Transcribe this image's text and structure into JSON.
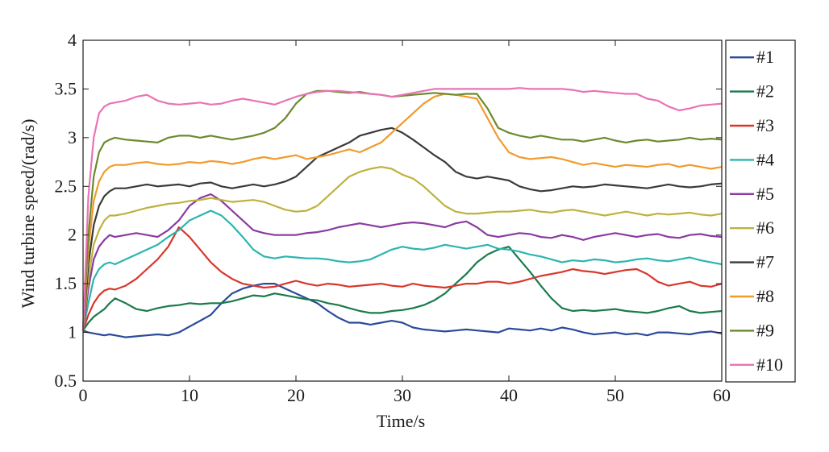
{
  "chart_data": {
    "type": "line",
    "title": "",
    "xlabel": "Time/s",
    "ylabel": "Wind turbine speed/(rad/s)",
    "xlim": [
      0,
      60
    ],
    "ylim": [
      0.5,
      4
    ],
    "xticks": [
      "0",
      "10",
      "20",
      "30",
      "40",
      "50",
      "60"
    ],
    "yticks": [
      "0.5",
      "1",
      "1.5",
      "2",
      "2.5",
      "3",
      "3.5",
      "4"
    ],
    "grid": false,
    "legend_position": "outside-right",
    "x": [
      0,
      0.5,
      1,
      1.5,
      2,
      2.5,
      3,
      4,
      5,
      6,
      7,
      8,
      9,
      10,
      11,
      12,
      13,
      14,
      15,
      16,
      17,
      18,
      19,
      20,
      21,
      22,
      23,
      24,
      25,
      26,
      27,
      28,
      29,
      30,
      31,
      32,
      33,
      34,
      35,
      36,
      37,
      38,
      39,
      40,
      41,
      42,
      43,
      44,
      45,
      46,
      47,
      48,
      49,
      50,
      51,
      52,
      53,
      54,
      55,
      56,
      57,
      58,
      59,
      60
    ],
    "series": [
      {
        "name": "#1",
        "color": "#2a4a9a",
        "values": [
          1.02,
          1.0,
          0.99,
          0.98,
          0.97,
          0.98,
          0.97,
          0.95,
          0.96,
          0.97,
          0.98,
          0.97,
          1.0,
          1.06,
          1.12,
          1.18,
          1.3,
          1.4,
          1.45,
          1.48,
          1.5,
          1.5,
          1.45,
          1.4,
          1.35,
          1.3,
          1.22,
          1.15,
          1.1,
          1.1,
          1.08,
          1.1,
          1.12,
          1.1,
          1.05,
          1.03,
          1.02,
          1.01,
          1.02,
          1.03,
          1.02,
          1.01,
          1.0,
          1.04,
          1.03,
          1.02,
          1.04,
          1.02,
          1.05,
          1.03,
          1.0,
          0.98,
          0.99,
          1.0,
          0.98,
          0.99,
          0.97,
          1.0,
          1.0,
          0.99,
          0.98,
          1.0,
          1.01,
          0.99
        ]
      },
      {
        "name": "#2",
        "color": "#1a7a4a",
        "values": [
          1.02,
          1.1,
          1.16,
          1.2,
          1.24,
          1.3,
          1.35,
          1.3,
          1.24,
          1.22,
          1.25,
          1.27,
          1.28,
          1.3,
          1.29,
          1.3,
          1.3,
          1.32,
          1.35,
          1.38,
          1.37,
          1.4,
          1.38,
          1.36,
          1.34,
          1.33,
          1.3,
          1.28,
          1.25,
          1.22,
          1.2,
          1.2,
          1.22,
          1.23,
          1.25,
          1.28,
          1.33,
          1.4,
          1.5,
          1.6,
          1.72,
          1.8,
          1.85,
          1.88,
          1.75,
          1.62,
          1.48,
          1.35,
          1.25,
          1.22,
          1.23,
          1.22,
          1.23,
          1.24,
          1.22,
          1.21,
          1.2,
          1.22,
          1.25,
          1.27,
          1.22,
          1.2,
          1.21,
          1.22
        ]
      },
      {
        "name": "#3",
        "color": "#d9362a",
        "values": [
          1.02,
          1.18,
          1.3,
          1.38,
          1.43,
          1.45,
          1.44,
          1.48,
          1.55,
          1.65,
          1.75,
          1.88,
          2.08,
          1.98,
          1.85,
          1.72,
          1.62,
          1.55,
          1.5,
          1.48,
          1.46,
          1.47,
          1.5,
          1.53,
          1.5,
          1.48,
          1.5,
          1.49,
          1.47,
          1.48,
          1.49,
          1.5,
          1.48,
          1.47,
          1.5,
          1.48,
          1.47,
          1.46,
          1.48,
          1.5,
          1.5,
          1.52,
          1.52,
          1.5,
          1.52,
          1.55,
          1.58,
          1.6,
          1.62,
          1.65,
          1.63,
          1.62,
          1.6,
          1.62,
          1.64,
          1.65,
          1.6,
          1.52,
          1.48,
          1.5,
          1.52,
          1.48,
          1.47,
          1.5
        ]
      },
      {
        "name": "#4",
        "color": "#2bb5b0",
        "values": [
          1.02,
          1.3,
          1.55,
          1.65,
          1.7,
          1.72,
          1.7,
          1.75,
          1.8,
          1.85,
          1.9,
          1.98,
          2.05,
          2.15,
          2.2,
          2.25,
          2.2,
          2.1,
          1.98,
          1.85,
          1.78,
          1.76,
          1.78,
          1.77,
          1.76,
          1.76,
          1.75,
          1.73,
          1.72,
          1.73,
          1.75,
          1.8,
          1.85,
          1.88,
          1.86,
          1.85,
          1.87,
          1.9,
          1.88,
          1.86,
          1.88,
          1.9,
          1.86,
          1.85,
          1.83,
          1.8,
          1.78,
          1.75,
          1.72,
          1.74,
          1.73,
          1.75,
          1.74,
          1.72,
          1.73,
          1.75,
          1.76,
          1.74,
          1.73,
          1.75,
          1.77,
          1.74,
          1.72,
          1.7
        ]
      },
      {
        "name": "#5",
        "color": "#8a3aa0",
        "values": [
          1.02,
          1.45,
          1.75,
          1.88,
          1.95,
          2.0,
          1.98,
          2.0,
          2.02,
          2.0,
          1.98,
          2.05,
          2.15,
          2.3,
          2.38,
          2.42,
          2.35,
          2.25,
          2.15,
          2.05,
          2.02,
          2.0,
          2.0,
          2.0,
          2.02,
          2.03,
          2.05,
          2.08,
          2.1,
          2.12,
          2.1,
          2.08,
          2.1,
          2.12,
          2.13,
          2.12,
          2.1,
          2.08,
          2.12,
          2.14,
          2.08,
          2.0,
          1.98,
          2.0,
          2.02,
          2.01,
          1.98,
          1.97,
          2.0,
          1.98,
          1.95,
          1.98,
          2.0,
          2.02,
          2.0,
          1.98,
          2.0,
          2.01,
          1.98,
          1.97,
          2.0,
          2.01,
          1.99,
          1.98
        ]
      },
      {
        "name": "#6",
        "color": "#bdb23e",
        "values": [
          1.02,
          1.55,
          1.9,
          2.05,
          2.15,
          2.2,
          2.2,
          2.22,
          2.25,
          2.28,
          2.3,
          2.32,
          2.33,
          2.35,
          2.36,
          2.38,
          2.36,
          2.34,
          2.35,
          2.36,
          2.34,
          2.3,
          2.26,
          2.24,
          2.25,
          2.3,
          2.4,
          2.5,
          2.6,
          2.65,
          2.68,
          2.7,
          2.68,
          2.62,
          2.58,
          2.5,
          2.4,
          2.3,
          2.24,
          2.22,
          2.22,
          2.23,
          2.24,
          2.24,
          2.25,
          2.26,
          2.24,
          2.23,
          2.25,
          2.26,
          2.24,
          2.22,
          2.2,
          2.22,
          2.24,
          2.22,
          2.2,
          2.22,
          2.21,
          2.22,
          2.23,
          2.21,
          2.2,
          2.22
        ]
      },
      {
        "name": "#7",
        "color": "#3a3a3a",
        "values": [
          1.02,
          1.7,
          2.1,
          2.3,
          2.4,
          2.45,
          2.48,
          2.48,
          2.5,
          2.52,
          2.5,
          2.51,
          2.52,
          2.5,
          2.53,
          2.54,
          2.5,
          2.48,
          2.5,
          2.52,
          2.5,
          2.52,
          2.55,
          2.6,
          2.7,
          2.8,
          2.85,
          2.9,
          2.95,
          3.02,
          3.05,
          3.08,
          3.1,
          3.05,
          2.98,
          2.9,
          2.82,
          2.75,
          2.65,
          2.6,
          2.58,
          2.6,
          2.58,
          2.56,
          2.5,
          2.47,
          2.45,
          2.46,
          2.48,
          2.5,
          2.49,
          2.5,
          2.52,
          2.51,
          2.5,
          2.49,
          2.48,
          2.5,
          2.52,
          2.5,
          2.49,
          2.5,
          2.52,
          2.53
        ]
      },
      {
        "name": "#8",
        "color": "#f29a2a",
        "values": [
          1.02,
          1.85,
          2.35,
          2.55,
          2.65,
          2.7,
          2.72,
          2.72,
          2.74,
          2.75,
          2.73,
          2.72,
          2.73,
          2.75,
          2.74,
          2.76,
          2.75,
          2.73,
          2.75,
          2.78,
          2.8,
          2.78,
          2.8,
          2.82,
          2.78,
          2.8,
          2.82,
          2.85,
          2.88,
          2.85,
          2.9,
          2.95,
          3.05,
          3.15,
          3.25,
          3.35,
          3.42,
          3.45,
          3.44,
          3.42,
          3.4,
          3.2,
          3.0,
          2.85,
          2.8,
          2.78,
          2.79,
          2.8,
          2.78,
          2.75,
          2.72,
          2.74,
          2.72,
          2.7,
          2.72,
          2.71,
          2.7,
          2.72,
          2.73,
          2.7,
          2.72,
          2.7,
          2.68,
          2.7
        ]
      },
      {
        "name": "#9",
        "color": "#6b8a2e",
        "values": [
          1.02,
          2.0,
          2.6,
          2.85,
          2.95,
          2.98,
          3.0,
          2.98,
          2.97,
          2.96,
          2.95,
          3.0,
          3.02,
          3.02,
          3.0,
          3.02,
          3.0,
          2.98,
          3.0,
          3.02,
          3.05,
          3.1,
          3.2,
          3.35,
          3.45,
          3.48,
          3.48,
          3.47,
          3.46,
          3.47,
          3.45,
          3.44,
          3.42,
          3.43,
          3.44,
          3.45,
          3.46,
          3.45,
          3.44,
          3.45,
          3.45,
          3.3,
          3.1,
          3.05,
          3.02,
          3.0,
          3.02,
          3.0,
          2.98,
          2.98,
          2.96,
          2.98,
          3.0,
          2.97,
          2.95,
          2.97,
          2.98,
          2.96,
          2.97,
          2.98,
          3.0,
          2.98,
          2.99,
          2.98
        ]
      },
      {
        "name": "#10",
        "color": "#e973b5",
        "values": [
          1.02,
          2.4,
          3.0,
          3.25,
          3.32,
          3.35,
          3.36,
          3.38,
          3.42,
          3.44,
          3.38,
          3.35,
          3.34,
          3.35,
          3.36,
          3.34,
          3.35,
          3.38,
          3.4,
          3.38,
          3.36,
          3.34,
          3.38,
          3.42,
          3.45,
          3.47,
          3.48,
          3.48,
          3.47,
          3.46,
          3.45,
          3.44,
          3.42,
          3.44,
          3.46,
          3.48,
          3.5,
          3.5,
          3.5,
          3.5,
          3.5,
          3.5,
          3.5,
          3.5,
          3.51,
          3.5,
          3.5,
          3.5,
          3.5,
          3.49,
          3.47,
          3.48,
          3.47,
          3.46,
          3.45,
          3.45,
          3.4,
          3.38,
          3.32,
          3.28,
          3.3,
          3.33,
          3.34,
          3.35
        ]
      }
    ]
  }
}
